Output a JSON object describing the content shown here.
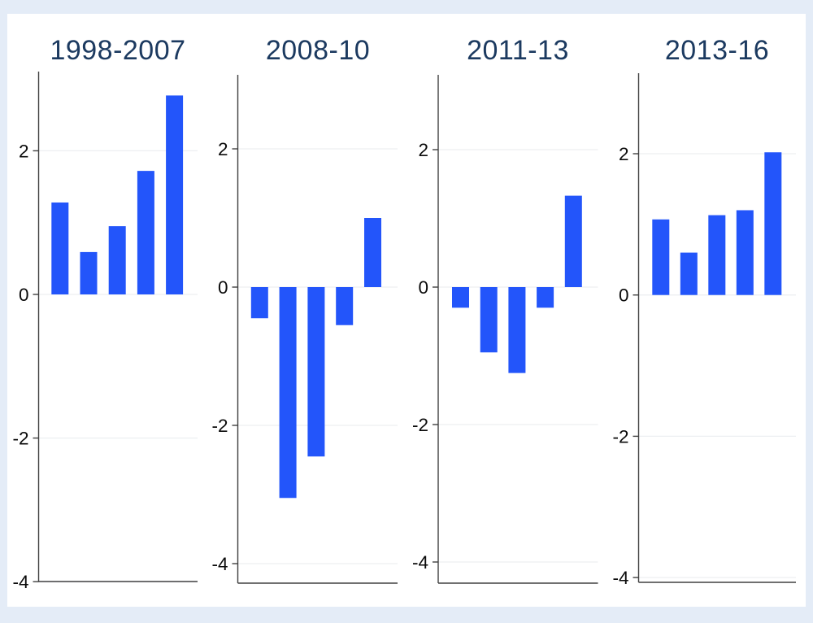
{
  "figure": {
    "kind": "four-panel bar chart figure",
    "panel_titles": [
      "1998-2007",
      "2008-10",
      "2011-13",
      "2013-16"
    ]
  },
  "colors": {
    "background": "#e4ecf7",
    "canvas": "#ffffff",
    "bar": "#2355fa",
    "title_text": "#1c3a60",
    "axis_line": "#404040",
    "tick_label": "#0a0a0a",
    "gridline": "#edeff1"
  },
  "chart_data": [
    {
      "type": "bar",
      "title": "1998-2007",
      "values": [
        1.28,
        0.59,
        0.95,
        1.72,
        2.77
      ],
      "yticks": [
        2,
        0,
        -2,
        -4
      ],
      "ytick_labels": [
        "2",
        "0",
        "-2",
        "-4"
      ],
      "ylim": [
        -4.0,
        3.1
      ],
      "grid": true,
      "xlabel": "",
      "ylabel": "",
      "legend": "none"
    },
    {
      "type": "bar",
      "title": "2008-10",
      "values": [
        -0.45,
        -3.05,
        -2.45,
        -0.55,
        1.0
      ],
      "yticks": [
        2,
        0,
        -2,
        -4
      ],
      "ytick_labels": [
        "2",
        "0",
        "-2",
        "-4"
      ],
      "ylim": [
        -4.27,
        3.05
      ],
      "grid": true,
      "xlabel": "",
      "ylabel": "",
      "legend": "none"
    },
    {
      "type": "bar",
      "title": "2011-13",
      "values": [
        -0.3,
        -0.95,
        -1.25,
        -0.3,
        1.33
      ],
      "yticks": [
        2,
        0,
        -2,
        -4
      ],
      "ytick_labels": [
        "2",
        "0",
        "-2",
        "-4"
      ],
      "ylim": [
        -4.3,
        3.08
      ],
      "grid": true,
      "xlabel": "",
      "ylabel": "",
      "legend": "none"
    },
    {
      "type": "bar",
      "title": "2013-16",
      "values": [
        1.07,
        0.6,
        1.13,
        1.2,
        2.02
      ],
      "yticks": [
        2,
        0,
        -2,
        -4
      ],
      "ytick_labels": [
        "2",
        "0",
        "-2",
        "-4"
      ],
      "ylim": [
        -4.08,
        3.16
      ],
      "grid": true,
      "xlabel": "",
      "ylabel": "",
      "legend": "none"
    }
  ]
}
